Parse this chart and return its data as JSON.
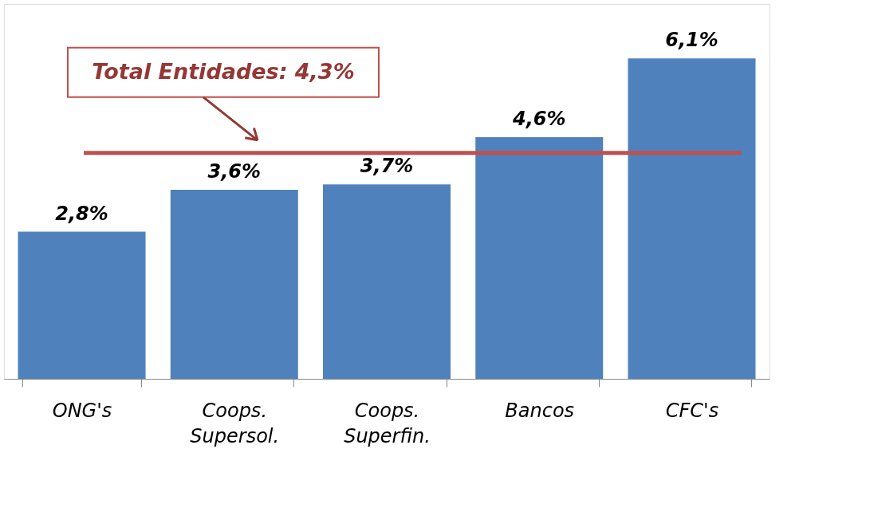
{
  "chart_data": {
    "type": "bar",
    "categories": [
      "ONG's",
      "Coops. Supersol.",
      "Coops. Superfin.",
      "Bancos",
      "CFC's"
    ],
    "values": [
      2.8,
      3.6,
      3.7,
      4.6,
      6.1
    ],
    "value_labels": [
      "2,8%",
      "3,6%",
      "3,7%",
      "4,6%",
      "6,1%"
    ],
    "color": "#4f81bd",
    "grid": false,
    "annotations": [
      "Total Entidades: 4,3%"
    ],
    "ref_lines": [
      {
        "axis": "y",
        "value": 4.3,
        "color": "#c0504d",
        "line_style": "solid"
      }
    ]
  }
}
